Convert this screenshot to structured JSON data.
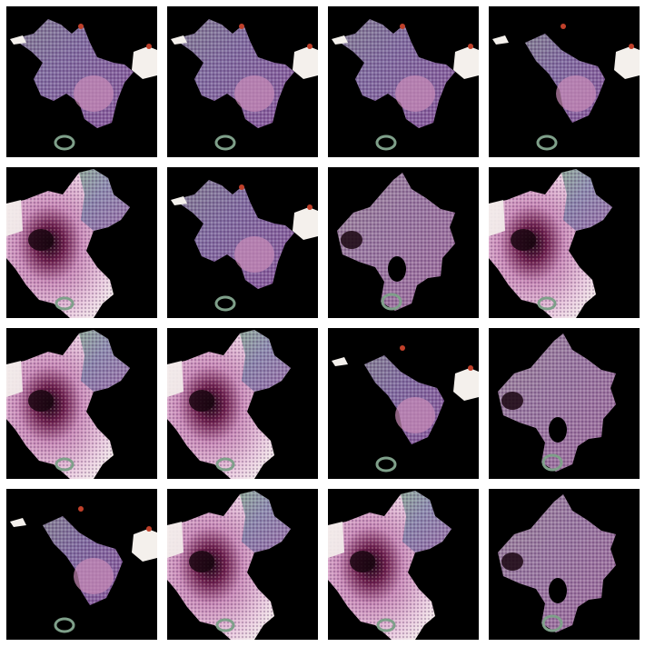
{
  "figure": {
    "background_color": "#ffffff",
    "tile_background_color": "#000000",
    "rows": 4,
    "columns": 4
  },
  "tiles": [
    {
      "variant": "bird"
    },
    {
      "variant": "bird"
    },
    {
      "variant": "bird"
    },
    {
      "variant": "bird-sparse"
    },
    {
      "variant": "pink-blob"
    },
    {
      "variant": "bird"
    },
    {
      "variant": "maple"
    },
    {
      "variant": "pink-blob"
    },
    {
      "variant": "pink-blob"
    },
    {
      "variant": "pink-blob"
    },
    {
      "variant": "bird-sparse"
    },
    {
      "variant": "maple"
    },
    {
      "variant": "bird-sparse"
    },
    {
      "variant": "pink-blob"
    },
    {
      "variant": "pink-blob"
    },
    {
      "variant": "maple"
    }
  ],
  "palette": {
    "pink": "#c98bb8",
    "light_pink": "#e8c8dd",
    "purple": "#8a5a9c",
    "blue_grey": "#7d7ea6",
    "green": "#7fa08a",
    "white": "#f4f0ec",
    "dark_spot": "#1a0610",
    "red_accent": "#c0402a"
  }
}
